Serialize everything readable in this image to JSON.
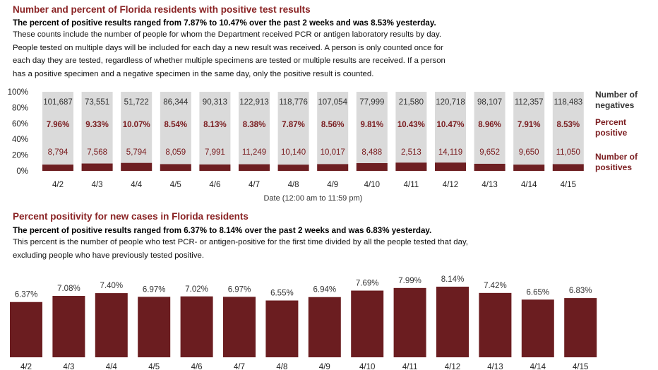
{
  "section1": {
    "title": "Number and percent of Florida residents with positive test results",
    "subtitle": "The percent of positive results ranged from 7.87% to 10.47% over the past 2 weeks and was 8.53% yesterday.",
    "description_lines": [
      "These counts include the number of people for whom the Department received PCR or antigen laboratory results by day.",
      "People tested on multiple days will be included for each day a new result was received. A person is only counted once for",
      "each day they are tested, regardless of whether multiple specimens are tested or multiple results are received. If a person",
      "has a positive specimen and a negative specimen in the same day, only the positive result is counted."
    ]
  },
  "section2": {
    "title": "Percent positivity for new cases in Florida residents",
    "subtitle": "The percent of positive results ranged from 6.37% to 8.14% over the past 2 weeks and was 6.83% yesterday.",
    "description_lines": [
      "This percent is the number of people who test PCR- or antigen-positive for the first time divided by all the people tested that day,",
      "excluding people who have previously tested positive."
    ]
  },
  "colors": {
    "title_red": "#8a2324",
    "positives": "#6d1f22",
    "negatives": "#dadada",
    "percent_text": "#7a1c1f",
    "bar2": "#6b1d20"
  },
  "chart_data": [
    {
      "type": "bar",
      "stacked": true,
      "categories": [
        "4/2",
        "4/3",
        "4/4",
        "4/5",
        "4/6",
        "4/7",
        "4/8",
        "4/9",
        "4/10",
        "4/11",
        "4/12",
        "4/13",
        "4/14",
        "4/15"
      ],
      "series": [
        {
          "name": "Number of negatives",
          "values": [
            101687,
            73551,
            51722,
            86344,
            90313,
            122913,
            118776,
            107054,
            77999,
            21580,
            120718,
            98107,
            112357,
            118483
          ]
        },
        {
          "name": "Percent positive",
          "values": [
            "7.96%",
            "9.33%",
            "10.07%",
            "8.54%",
            "8.13%",
            "8.38%",
            "7.87%",
            "8.56%",
            "9.81%",
            "10.43%",
            "10.47%",
            "8.96%",
            "7.91%",
            "8.53%"
          ]
        },
        {
          "name": "Number of positives",
          "values": [
            8794,
            7568,
            5794,
            8059,
            7991,
            11249,
            10140,
            10017,
            8488,
            2513,
            14119,
            9652,
            9650,
            11050
          ]
        }
      ],
      "percent_positive": [
        7.96,
        9.33,
        10.07,
        8.54,
        8.13,
        8.38,
        7.87,
        8.56,
        9.81,
        10.43,
        10.47,
        8.96,
        7.91,
        8.53
      ],
      "xlabel": "Date (12:00 am to 11:59 pm)",
      "ylabel": "",
      "ylim": [
        0,
        100
      ],
      "ytick_labels": [
        "0%",
        "20%",
        "40%",
        "60%",
        "80%",
        "100%"
      ],
      "legend_lines": {
        "negatives": [
          "Number of",
          "negatives"
        ],
        "percent": [
          "Percent",
          "positive"
        ],
        "positives": [
          "Number of",
          "positives"
        ]
      },
      "legend_position": "right",
      "grid": false
    },
    {
      "type": "bar",
      "categories": [
        "4/2",
        "4/3",
        "4/4",
        "4/5",
        "4/6",
        "4/7",
        "4/8",
        "4/9",
        "4/10",
        "4/11",
        "4/12",
        "4/13",
        "4/14",
        "4/15"
      ],
      "values": [
        6.37,
        7.08,
        7.4,
        6.97,
        7.02,
        6.97,
        6.55,
        6.94,
        7.69,
        7.99,
        8.14,
        7.42,
        6.65,
        6.83
      ],
      "data_labels": [
        "6.37%",
        "7.08%",
        "7.40%",
        "6.97%",
        "7.02%",
        "6.97%",
        "6.55%",
        "6.94%",
        "7.69%",
        "7.99%",
        "8.14%",
        "7.42%",
        "6.65%",
        "6.83%"
      ],
      "title": "",
      "xlabel": "",
      "ylabel": "",
      "grid": false
    }
  ]
}
